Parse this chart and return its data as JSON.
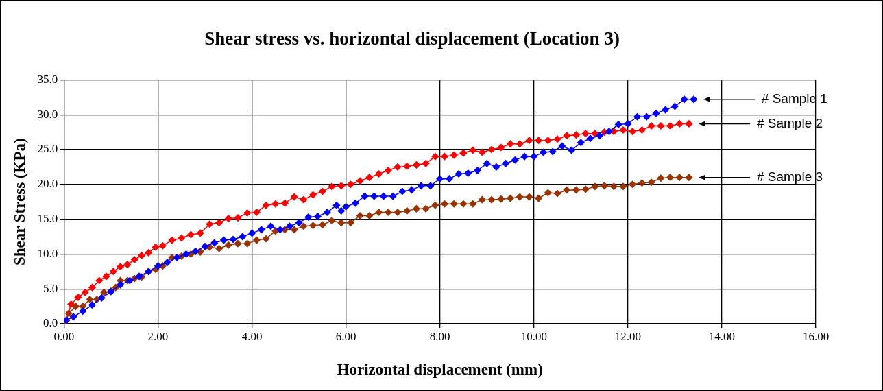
{
  "chart_data": {
    "type": "line",
    "title": "Shear stress vs. horizontal displacement (Location 3)",
    "xlabel": "Horizontal displacement (mm)",
    "ylabel": "Shear Stress (KPa)",
    "marker": "diamond",
    "grid": true,
    "legend": false,
    "xlim": [
      0,
      16
    ],
    "xticks": [
      {
        "value": 0,
        "label": "0.00"
      },
      {
        "value": 2,
        "label": "2.00"
      },
      {
        "value": 4,
        "label": "4.00"
      },
      {
        "value": 6,
        "label": "6.00"
      },
      {
        "value": 8,
        "label": "8.00"
      },
      {
        "value": 10,
        "label": "10.00"
      },
      {
        "value": 12,
        "label": "12.00"
      },
      {
        "value": 14,
        "label": "14.00"
      },
      {
        "value": 16,
        "label": "16.00"
      }
    ],
    "ylim": [
      0,
      35
    ],
    "yticks": [
      {
        "value": 0,
        "label": "0.0"
      },
      {
        "value": 5,
        "label": "5.0"
      },
      {
        "value": 10,
        "label": "10.0"
      },
      {
        "value": 15,
        "label": "15.0"
      },
      {
        "value": 20,
        "label": "20.0"
      },
      {
        "value": 25,
        "label": "25.0"
      },
      {
        "value": 30,
        "label": "30.0"
      },
      {
        "value": 35,
        "label": "35.0"
      }
    ],
    "series": [
      {
        "name": "# Sample 1",
        "color": "#0000ff",
        "x": [
          0.05,
          0.2,
          0.4,
          0.6,
          0.8,
          1.0,
          1.2,
          1.4,
          1.6,
          1.8,
          2.0,
          2.2,
          2.4,
          2.6,
          2.8,
          3.0,
          3.2,
          3.4,
          3.6,
          3.8,
          4.0,
          4.2,
          4.4,
          4.6,
          4.8,
          5.0,
          5.2,
          5.4,
          5.6,
          5.8,
          5.9,
          6.0,
          6.2,
          6.4,
          6.6,
          6.8,
          7.0,
          7.2,
          7.4,
          7.6,
          7.8,
          8.0,
          8.2,
          8.4,
          8.6,
          8.8,
          9.0,
          9.2,
          9.4,
          9.6,
          9.8,
          10.0,
          10.2,
          10.4,
          10.6,
          10.8,
          11.0,
          11.2,
          11.4,
          11.6,
          11.8,
          12.0,
          12.2,
          12.4,
          12.6,
          12.8,
          13.0,
          13.2,
          13.4
        ],
        "values": [
          0.5,
          1.0,
          1.8,
          2.7,
          3.7,
          4.6,
          5.6,
          6.2,
          6.8,
          7.5,
          8.3,
          8.8,
          9.5,
          10.0,
          10.4,
          11.1,
          11.6,
          12.0,
          12.1,
          12.5,
          13.0,
          13.5,
          14.0,
          13.5,
          14.0,
          14.5,
          15.3,
          15.4,
          16.0,
          17.0,
          16.2,
          16.8,
          17.3,
          18.3,
          18.3,
          18.3,
          18.3,
          19.0,
          19.2,
          19.8,
          19.8,
          20.8,
          20.8,
          21.5,
          21.6,
          22.0,
          23.0,
          22.5,
          23.0,
          23.5,
          24.0,
          24.0,
          24.6,
          24.7,
          25.5,
          24.9,
          26.0,
          26.6,
          27.0,
          27.6,
          28.6,
          28.7,
          29.7,
          29.7,
          30.2,
          30.7,
          31.2,
          32.2,
          32.2
        ]
      },
      {
        "name": "# Sample 2",
        "color": "#ff0000",
        "x": [
          0.05,
          0.15,
          0.3,
          0.45,
          0.6,
          0.75,
          0.9,
          1.05,
          1.2,
          1.35,
          1.5,
          1.65,
          1.8,
          1.95,
          2.1,
          2.3,
          2.5,
          2.7,
          2.9,
          3.1,
          3.3,
          3.5,
          3.7,
          3.9,
          4.1,
          4.3,
          4.5,
          4.7,
          4.9,
          5.1,
          5.3,
          5.5,
          5.7,
          5.9,
          6.1,
          6.3,
          6.5,
          6.7,
          6.9,
          7.1,
          7.3,
          7.5,
          7.7,
          7.9,
          8.1,
          8.3,
          8.5,
          8.7,
          8.9,
          9.1,
          9.3,
          9.5,
          9.7,
          9.9,
          10.1,
          10.3,
          10.5,
          10.7,
          10.9,
          11.1,
          11.3,
          11.5,
          11.7,
          11.9,
          12.1,
          12.3,
          12.5,
          12.7,
          12.9,
          13.1,
          13.3
        ],
        "values": [
          0.5,
          2.8,
          3.8,
          4.5,
          5.2,
          6.2,
          6.8,
          7.5,
          8.2,
          8.5,
          9.2,
          9.8,
          10.2,
          11.0,
          11.2,
          12.0,
          12.3,
          12.8,
          13.0,
          14.3,
          14.5,
          15.1,
          15.2,
          15.9,
          16.0,
          17.0,
          17.2,
          17.3,
          18.2,
          17.8,
          18.5,
          19.0,
          19.7,
          19.8,
          20.0,
          20.5,
          21.0,
          21.5,
          22.0,
          22.5,
          22.6,
          22.8,
          23.0,
          24.0,
          24.0,
          24.2,
          24.5,
          24.9,
          24.6,
          25.0,
          25.3,
          25.8,
          25.8,
          26.3,
          26.3,
          26.3,
          26.5,
          27.0,
          27.1,
          27.3,
          27.3,
          27.5,
          27.6,
          27.8,
          27.6,
          27.8,
          28.4,
          28.4,
          28.4,
          28.7,
          28.7
        ]
      },
      {
        "name": "# Sample 3",
        "color": "#993300",
        "x": [
          0.0,
          0.1,
          0.25,
          0.4,
          0.55,
          0.7,
          0.85,
          1.0,
          1.1,
          1.2,
          1.35,
          1.5,
          1.65,
          1.8,
          1.95,
          2.1,
          2.3,
          2.5,
          2.7,
          2.9,
          3.1,
          3.3,
          3.5,
          3.7,
          3.9,
          4.1,
          4.3,
          4.5,
          4.7,
          4.9,
          5.1,
          5.3,
          5.5,
          5.7,
          5.9,
          6.1,
          6.3,
          6.5,
          6.7,
          6.9,
          7.1,
          7.3,
          7.5,
          7.7,
          7.9,
          8.1,
          8.3,
          8.5,
          8.7,
          8.9,
          9.1,
          9.3,
          9.5,
          9.7,
          9.9,
          10.1,
          10.3,
          10.5,
          10.7,
          10.9,
          11.1,
          11.3,
          11.5,
          11.7,
          11.9,
          12.1,
          12.3,
          12.5,
          12.7,
          12.9,
          13.1,
          13.3
        ],
        "values": [
          0.0,
          1.5,
          2.5,
          2.5,
          3.5,
          3.5,
          4.5,
          4.7,
          5.2,
          6.2,
          6.2,
          6.5,
          6.7,
          7.5,
          7.8,
          8.3,
          9.5,
          9.7,
          10.0,
          10.3,
          11.0,
          10.8,
          11.3,
          11.5,
          11.5,
          12.0,
          12.2,
          13.3,
          13.5,
          13.5,
          14.0,
          14.1,
          14.2,
          14.8,
          14.5,
          14.5,
          15.5,
          15.5,
          16.0,
          16.0,
          16.0,
          16.2,
          16.5,
          16.5,
          17.0,
          17.2,
          17.2,
          17.2,
          17.2,
          17.8,
          17.8,
          17.9,
          18.0,
          18.2,
          18.2,
          18.0,
          18.8,
          18.7,
          19.2,
          19.2,
          19.3,
          19.7,
          19.8,
          19.7,
          19.7,
          20.0,
          20.2,
          20.3,
          20.9,
          21.0,
          21.0,
          21.0
        ]
      }
    ]
  }
}
